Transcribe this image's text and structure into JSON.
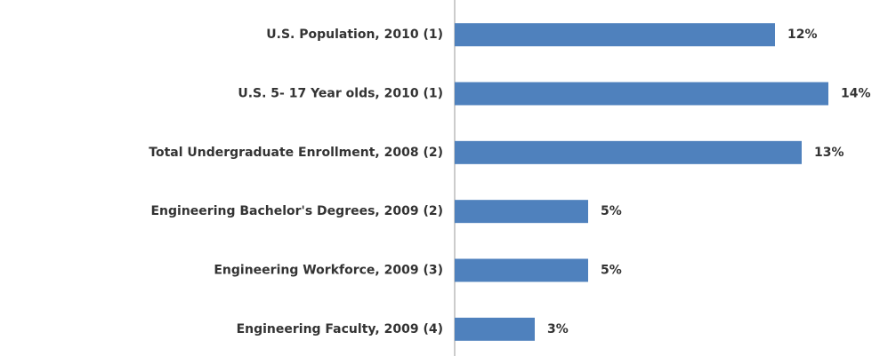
{
  "chart_data": {
    "type": "barh",
    "categories": [
      "U.S. Population, 2010 (1)",
      "U.S. 5- 17 Year olds, 2010 (1)",
      "Total Undergraduate Enrollment, 2008 (2)",
      "Engineering Bachelor's Degrees, 2009 (2)",
      "Engineering Workforce, 2009 (3)",
      "Engineering Faculty, 2009 (4)"
    ],
    "values": [
      12,
      14,
      13,
      5,
      5,
      3
    ],
    "value_labels": [
      "12%",
      "14%",
      "13%",
      "5%",
      "5%",
      "3%"
    ],
    "color": "#4f81bd",
    "xlim": [
      0,
      16
    ]
  }
}
